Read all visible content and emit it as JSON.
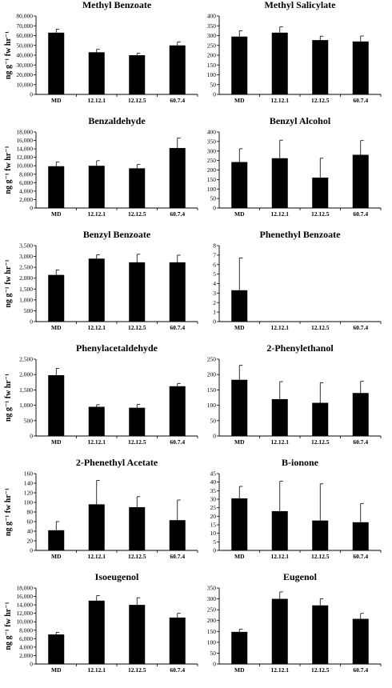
{
  "chart_data": [
    {
      "type": "bar",
      "title": "Methyl Benzoate",
      "ylabel": "ng g⁻¹ fw hr⁻¹",
      "ylim": [
        0,
        80000
      ],
      "yticks": [
        "0",
        "10,000",
        "20,000",
        "30,000",
        "40,000",
        "50,000",
        "60,000",
        "70,000",
        "80,000"
      ],
      "categories": [
        "MD",
        "12.12.1",
        "12.12.5",
        "60.7.4"
      ],
      "values": [
        63000,
        43000,
        40000,
        50000
      ],
      "errors": [
        3500,
        3000,
        2000,
        3500
      ]
    },
    {
      "type": "bar",
      "title": "Methyl Salicylate",
      "ylabel": "",
      "ylim": [
        0,
        400
      ],
      "yticks": [
        "0",
        "50",
        "100",
        "150",
        "200",
        "250",
        "300",
        "350",
        "400"
      ],
      "categories": [
        "MD",
        "12.12.1",
        "12.12.5",
        "60.7.4"
      ],
      "values": [
        295,
        315,
        277,
        270
      ],
      "errors": [
        30,
        30,
        20,
        28
      ]
    },
    {
      "type": "bar",
      "title": "Benzaldehyde",
      "ylabel": "ng g⁻¹ fw hr⁻¹",
      "ylim": [
        0,
        18000
      ],
      "yticks": [
        "0",
        "2,000",
        "4,000",
        "6,000",
        "8,000",
        "10,000",
        "12,000",
        "14,000",
        "16,000",
        "18,000"
      ],
      "categories": [
        "MD",
        "12.12.1",
        "12.12.5",
        "60.7.4"
      ],
      "values": [
        9900,
        10000,
        9400,
        14200
      ],
      "errors": [
        1000,
        1200,
        900,
        2400
      ]
    },
    {
      "type": "bar",
      "title": "Benzyl Alcohol",
      "ylabel": "",
      "ylim": [
        0,
        400
      ],
      "yticks": [
        "0",
        "50",
        "100",
        "150",
        "200",
        "250",
        "300",
        "350",
        "400"
      ],
      "categories": [
        "MD",
        "12.12.1",
        "12.12.5",
        "60.7.4"
      ],
      "values": [
        242,
        262,
        160,
        280
      ],
      "errors": [
        70,
        95,
        102,
        75
      ]
    },
    {
      "type": "bar",
      "title": "Benzyl Benzoate",
      "ylabel": "ng g⁻¹ fw hr⁻¹",
      "ylim": [
        0,
        3500
      ],
      "yticks": [
        "0",
        "500",
        "1,000",
        "1,500",
        "2,000",
        "2,500",
        "3,000",
        "3,500"
      ],
      "categories": [
        "MD",
        "12.12.1",
        "12.12.5",
        "60.7.4"
      ],
      "values": [
        2150,
        2900,
        2730,
        2730
      ],
      "errors": [
        230,
        180,
        370,
        330
      ]
    },
    {
      "type": "bar",
      "title": "Phenethyl Benzoate",
      "ylabel": "",
      "ylim": [
        0,
        8
      ],
      "yticks": [
        "0",
        "1",
        "2",
        "3",
        "4",
        "5",
        "6",
        "7",
        "8"
      ],
      "categories": [
        "MD",
        "12.12.1",
        "12.12.5",
        "60.7.4"
      ],
      "values": [
        3.3,
        0,
        0,
        0
      ],
      "errors": [
        3.4,
        0,
        0,
        0
      ]
    },
    {
      "type": "bar",
      "title": "Phenylacetaldehyde",
      "ylabel": "ng g⁻¹ fw hr⁻¹",
      "ylim": [
        0,
        2500
      ],
      "yticks": [
        "0",
        "500",
        "1,000",
        "1,500",
        "2,000",
        "2,500"
      ],
      "categories": [
        "MD",
        "12.12.1",
        "12.12.5",
        "60.7.4"
      ],
      "values": [
        1980,
        950,
        920,
        1620
      ],
      "errors": [
        220,
        70,
        110,
        90
      ]
    },
    {
      "type": "bar",
      "title": "2-Phenylethanol",
      "ylabel": "",
      "ylim": [
        0,
        250
      ],
      "yticks": [
        "0",
        "50",
        "100",
        "150",
        "200",
        "250"
      ],
      "categories": [
        "MD",
        "12.12.1",
        "12.12.5",
        "60.7.4"
      ],
      "values": [
        183,
        120,
        108,
        140
      ],
      "errors": [
        47,
        57,
        65,
        38
      ]
    },
    {
      "type": "bar",
      "title": "2-Phenethyl Acetate",
      "ylabel": "ng g⁻¹ fw hr⁻¹",
      "ylim": [
        0,
        160
      ],
      "yticks": [
        "0",
        "20",
        "40",
        "60",
        "80",
        "100",
        "120",
        "140",
        "160"
      ],
      "categories": [
        "MD",
        "12.12.1",
        "12.12.5",
        "60.7.4"
      ],
      "values": [
        42,
        96,
        90,
        63
      ],
      "errors": [
        18,
        50,
        22,
        42
      ]
    },
    {
      "type": "bar",
      "title": "B-ionone",
      "ylabel": "",
      "ylim": [
        0,
        45
      ],
      "yticks": [
        "0",
        "5",
        "10",
        "15",
        "20",
        "25",
        "30",
        "35",
        "40",
        "45"
      ],
      "categories": [
        "MD",
        "12.12.1",
        "12.12.5",
        "60.7.4"
      ],
      "values": [
        30.5,
        23,
        17.5,
        16.5
      ],
      "errors": [
        7,
        17.5,
        21.5,
        11
      ]
    },
    {
      "type": "bar",
      "title": "Isoeugenol",
      "ylabel": "ng g⁻¹ fw hr⁻¹",
      "ylim": [
        0,
        18000
      ],
      "yticks": [
        "0",
        "2,000",
        "4,000",
        "6,000",
        "8,000",
        "10,000",
        "12,000",
        "14,000",
        "16,000",
        "18,000"
      ],
      "categories": [
        "MD",
        "12.12.1",
        "12.12.5",
        "60.7.4"
      ],
      "values": [
        7000,
        15000,
        14000,
        11000
      ],
      "errors": [
        500,
        1200,
        1700,
        1000
      ]
    },
    {
      "type": "bar",
      "title": "Eugenol",
      "ylabel": "",
      "ylim": [
        0,
        350
      ],
      "yticks": [
        "0",
        "50",
        "100",
        "150",
        "200",
        "250",
        "300",
        "350"
      ],
      "categories": [
        "MD",
        "12.12.1",
        "12.12.5",
        "60.7.4"
      ],
      "values": [
        148,
        300,
        270,
        208
      ],
      "errors": [
        12,
        32,
        30,
        25
      ]
    }
  ]
}
